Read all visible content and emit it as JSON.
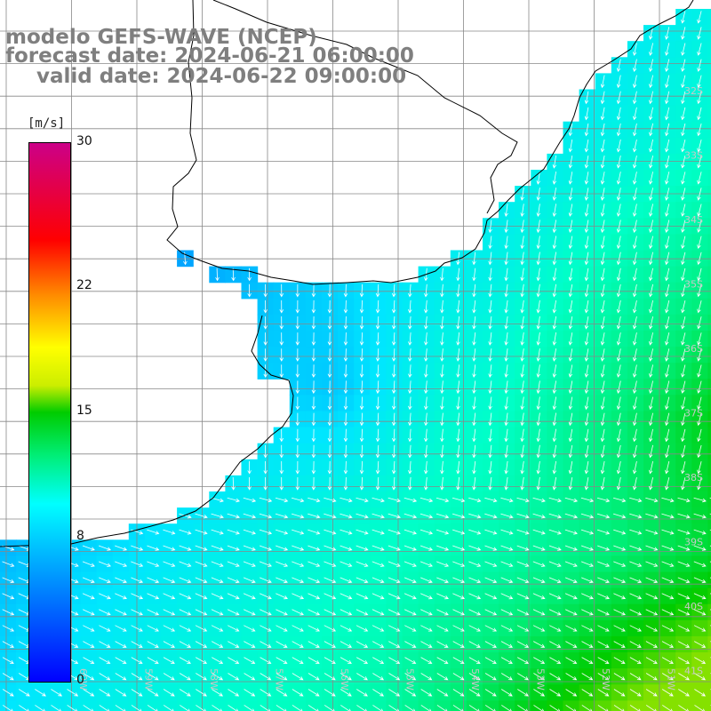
{
  "header": {
    "model": "modelo GEFS-WAVE (NCEP)",
    "forecast": "forecast date: 2024-06-21 06:00:00",
    "valid": "valid date: 2024-06-22 09:00:00"
  },
  "colorbar": {
    "unit": "[m/s]",
    "ticks": [
      {
        "value": 30,
        "label": "30"
      },
      {
        "value": 22,
        "label": "22"
      },
      {
        "value": 15,
        "label": "15"
      },
      {
        "value": 8,
        "label": "8"
      },
      {
        "value": 0,
        "label": "0"
      }
    ]
  },
  "map": {
    "lat_labels": [
      "32S",
      "33S",
      "34S",
      "35S",
      "36S",
      "37S",
      "38S",
      "39S",
      "40S",
      "41S"
    ],
    "lon_labels": [
      "60W",
      "59W",
      "58W",
      "57W",
      "56W",
      "55W",
      "54W",
      "53W",
      "52W",
      "51W"
    ],
    "colors": {
      "land": "#ffffff",
      "grid": "#888888",
      "coast": "#000000",
      "arrow": "#ffffff"
    }
  }
}
